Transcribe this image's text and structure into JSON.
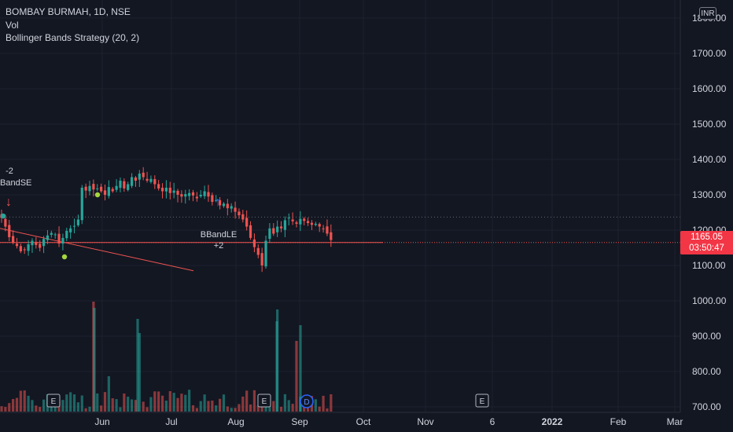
{
  "legend": {
    "title": "BOMBAY BURMAH, 1D, NSE",
    "vol": "Vol",
    "strategy": "Bollinger Bands Strategy (20, 2)"
  },
  "price_tag": {
    "price": "1165.05",
    "countdown": "03:50:47"
  },
  "currency": "INR",
  "signals": {
    "short": {
      "qty": "-2",
      "label": "BandSE"
    },
    "long": {
      "label": "BBandLE",
      "qty": "+2"
    }
  },
  "colors": {
    "background": "#131722",
    "up": "#26a69a",
    "down": "#ef5350",
    "grid": "#1e222d",
    "text": "#d1d4dc"
  },
  "chart_data": {
    "type": "candlestick",
    "title": "BOMBAY BURMAH, 1D, NSE",
    "ylim": [
      690,
      1860
    ],
    "y_ticks": [
      700,
      800,
      900,
      1000,
      1100,
      1200,
      1300,
      1400,
      1500,
      1600,
      1700,
      1800
    ],
    "y_tick_labels": [
      "700.00",
      "800.00",
      "900.00",
      "1000.00",
      "1100.00",
      "1200.00",
      "1300.00",
      "1400.00",
      "1500.00",
      "1600.00",
      "1700.00",
      "1800.00"
    ],
    "x_labels": [
      "Jun",
      "Jul",
      "Aug",
      "Sep",
      "Oct",
      "Nov",
      "6",
      "2022",
      "Feb",
      "Mar"
    ],
    "last_price": 1165.05,
    "reference_price": 1237,
    "trendline": {
      "start": {
        "date": "May 1",
        "price": 1205
      },
      "end": {
        "date": "Jul 10",
        "price": 1085
      }
    },
    "earnings_markers": [
      "May 12",
      "Aug 15",
      "Nov 26"
    ],
    "dividend_marker": "Aug 26",
    "series_close": [
      1235,
      1210,
      1180,
      1165,
      1155,
      1140,
      1145,
      1160,
      1170,
      1158,
      1150,
      1175,
      1185,
      1192,
      1188,
      1162,
      1178,
      1198,
      1205,
      1212,
      1230,
      1320,
      1312,
      1325,
      1315,
      1318,
      1310,
      1300,
      1322,
      1310,
      1325,
      1340,
      1318,
      1330,
      1350,
      1340,
      1360,
      1350,
      1340,
      1345,
      1330,
      1318,
      1310,
      1320,
      1305,
      1312,
      1300,
      1295,
      1302,
      1305,
      1298,
      1290,
      1300,
      1310,
      1295,
      1280,
      1285,
      1270,
      1275,
      1262,
      1268,
      1252,
      1242,
      1230,
      1210,
      1178,
      1152,
      1130,
      1100,
      1170,
      1205,
      1190,
      1210,
      1205,
      1228,
      1235,
      1225,
      1218,
      1232,
      1226,
      1220,
      1215,
      1218,
      1210,
      1205,
      1190,
      1172
    ]
  }
}
